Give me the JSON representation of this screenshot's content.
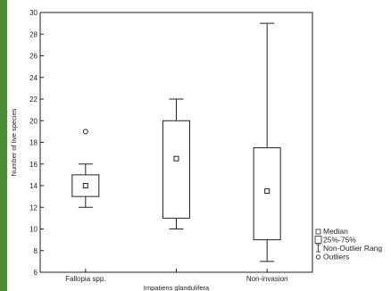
{
  "chart_data": {
    "type": "boxplot",
    "ylabel": "Number of live species",
    "xlabel": "Impatiens glandulifera",
    "ylim": [
      6,
      30
    ],
    "yticks": [
      6,
      8,
      10,
      12,
      14,
      16,
      18,
      20,
      22,
      24,
      26,
      28,
      30
    ],
    "categories": [
      "Fallopia spp.",
      "Impatiens glandulifera",
      "Non-invasion"
    ],
    "x_tick_labels": [
      "Fallopia spp.",
      "",
      "Non-invasion"
    ],
    "boxes": [
      {
        "category": "Fallopia spp.",
        "median": 14,
        "q1": 13,
        "q3": 15,
        "whisker_low": 12,
        "whisker_high": 16,
        "outliers": [
          19
        ]
      },
      {
        "category": "Impatiens glandulifera",
        "median": 16.5,
        "q1": 11,
        "q3": 20,
        "whisker_low": 10,
        "whisker_high": 22,
        "outliers": []
      },
      {
        "category": "Non-invasion",
        "median": 13.5,
        "q1": 9,
        "q3": 17.5,
        "whisker_low": 7,
        "whisker_high": 29,
        "outliers": []
      }
    ],
    "legend": {
      "placement": "bottom-right",
      "items": [
        "Median",
        "25%-75%",
        "Non-Outlier Rang",
        "Outliers"
      ]
    },
    "grid": false,
    "colors": {
      "background_frame": "#4a8a3a",
      "lines": "#222222"
    }
  }
}
